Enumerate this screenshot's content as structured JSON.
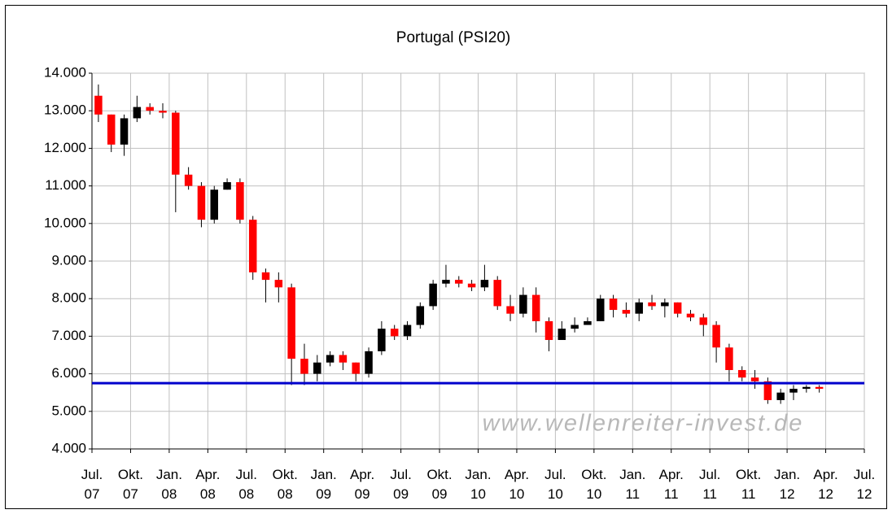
{
  "chart_data": {
    "type": "candlestick",
    "title": "Portugal (PSI20)",
    "annotation": "www.wellenreiter-invest.de",
    "x": [
      "2007-07",
      "2007-08",
      "2007-09",
      "2007-10",
      "2007-11",
      "2007-12",
      "2008-01",
      "2008-02",
      "2008-03",
      "2008-04",
      "2008-05",
      "2008-06",
      "2008-07",
      "2008-08",
      "2008-09",
      "2008-10",
      "2008-11",
      "2008-12",
      "2009-01",
      "2009-02",
      "2009-03",
      "2009-04",
      "2009-05",
      "2009-06",
      "2009-07",
      "2009-08",
      "2009-09",
      "2009-10",
      "2009-11",
      "2009-12",
      "2010-01",
      "2010-02",
      "2010-03",
      "2010-04",
      "2010-05",
      "2010-06",
      "2010-07",
      "2010-08",
      "2010-09",
      "2010-10",
      "2010-11",
      "2010-12",
      "2011-01",
      "2011-02",
      "2011-03",
      "2011-04",
      "2011-05",
      "2011-06",
      "2011-07",
      "2011-08",
      "2011-09",
      "2011-10",
      "2011-11",
      "2011-12",
      "2012-01",
      "2012-02",
      "2012-03"
    ],
    "open": [
      13400,
      12900,
      12100,
      12800,
      13100,
      13000,
      12950,
      11300,
      11000,
      10100,
      10900,
      11100,
      10100,
      8700,
      8500,
      8300,
      6400,
      6000,
      6300,
      6500,
      6300,
      6000,
      6600,
      7200,
      7000,
      7300,
      7800,
      8400,
      8500,
      8400,
      8300,
      8500,
      7800,
      7600,
      8100,
      7400,
      6900,
      7200,
      7300,
      7400,
      8000,
      7700,
      7600,
      7900,
      7800,
      7900,
      7600,
      7500,
      7300,
      6700,
      6100,
      5900,
      5800,
      5300,
      5500,
      5600,
      5650
    ],
    "high": [
      13700,
      12900,
      12900,
      13400,
      13200,
      13200,
      13000,
      11500,
      11100,
      11000,
      11200,
      11200,
      10200,
      8800,
      8700,
      8400,
      6800,
      6500,
      6600,
      6600,
      6300,
      6700,
      7400,
      7300,
      7400,
      7900,
      8500,
      8900,
      8600,
      8500,
      8900,
      8600,
      8100,
      8300,
      8300,
      7500,
      7400,
      7500,
      7500,
      8100,
      8100,
      7900,
      8000,
      8100,
      8000,
      7900,
      7700,
      7600,
      7400,
      6800,
      6200,
      6100,
      5900,
      5600,
      5700,
      5700,
      5700
    ],
    "low": [
      12700,
      11900,
      11800,
      12700,
      12900,
      12800,
      10300,
      10900,
      9900,
      10000,
      10900,
      10000,
      8500,
      7900,
      7900,
      5700,
      5700,
      5800,
      6200,
      6100,
      5800,
      5900,
      6500,
      6900,
      6900,
      7200,
      7700,
      8300,
      8300,
      8200,
      8200,
      7700,
      7400,
      7500,
      7100,
      6600,
      6900,
      7100,
      7300,
      7400,
      7500,
      7500,
      7400,
      7700,
      7500,
      7500,
      7400,
      7000,
      6300,
      5800,
      5800,
      5600,
      5200,
      5200,
      5300,
      5500,
      5500
    ],
    "close": [
      12900,
      12100,
      12800,
      13100,
      13000,
      12950,
      11300,
      11000,
      10100,
      10900,
      11100,
      10100,
      8700,
      8500,
      8300,
      6400,
      6000,
      6300,
      6500,
      6300,
      6000,
      6600,
      7200,
      7000,
      7300,
      7800,
      8400,
      8500,
      8400,
      8300,
      8500,
      7800,
      7600,
      8100,
      7400,
      6900,
      7200,
      7300,
      7400,
      8000,
      7700,
      7600,
      7900,
      7800,
      7900,
      7600,
      7500,
      7300,
      6700,
      6100,
      5900,
      5800,
      5300,
      5500,
      5600,
      5650,
      5600
    ],
    "up_color": "#000000",
    "down_color": "#ff0000",
    "hline": 5750,
    "hline_color": "#0000cc",
    "xlim": [
      "2007-07",
      "2012-07"
    ],
    "xticks": [
      {
        "value": "2007-07",
        "label": "Jul. 07"
      },
      {
        "value": "2007-10",
        "label": "Okt. 07"
      },
      {
        "value": "2008-01",
        "label": "Jan. 08"
      },
      {
        "value": "2008-04",
        "label": "Apr. 08"
      },
      {
        "value": "2008-07",
        "label": "Jul. 08"
      },
      {
        "value": "2008-10",
        "label": "Okt. 08"
      },
      {
        "value": "2009-01",
        "label": "Jan. 09"
      },
      {
        "value": "2009-04",
        "label": "Apr. 09"
      },
      {
        "value": "2009-07",
        "label": "Jul. 09"
      },
      {
        "value": "2009-10",
        "label": "Okt. 09"
      },
      {
        "value": "2010-01",
        "label": "Jan. 10"
      },
      {
        "value": "2010-04",
        "label": "Apr. 10"
      },
      {
        "value": "2010-07",
        "label": "Jul. 10"
      },
      {
        "value": "2010-10",
        "label": "Okt. 10"
      },
      {
        "value": "2011-01",
        "label": "Jan. 11"
      },
      {
        "value": "2011-04",
        "label": "Apr. 11"
      },
      {
        "value": "2011-07",
        "label": "Jul. 11"
      },
      {
        "value": "2011-10",
        "label": "Okt. 11"
      },
      {
        "value": "2012-01",
        "label": "Jan. 12"
      },
      {
        "value": "2012-04",
        "label": "Apr. 12"
      },
      {
        "value": "2012-07",
        "label": "Jul. 12"
      }
    ],
    "ylim": [
      4000,
      14000
    ],
    "yticks": [
      {
        "value": 4000,
        "label": "4.000"
      },
      {
        "value": 5000,
        "label": "5.000"
      },
      {
        "value": 6000,
        "label": "6.000"
      },
      {
        "value": 7000,
        "label": "7.000"
      },
      {
        "value": 8000,
        "label": "8.000"
      },
      {
        "value": 9000,
        "label": "9.000"
      },
      {
        "value": 10000,
        "label": "10.000"
      },
      {
        "value": 11000,
        "label": "11.000"
      },
      {
        "value": 12000,
        "label": "12.000"
      },
      {
        "value": 13000,
        "label": "13.000"
      },
      {
        "value": 14000,
        "label": "14.000"
      }
    ],
    "grid": true
  }
}
